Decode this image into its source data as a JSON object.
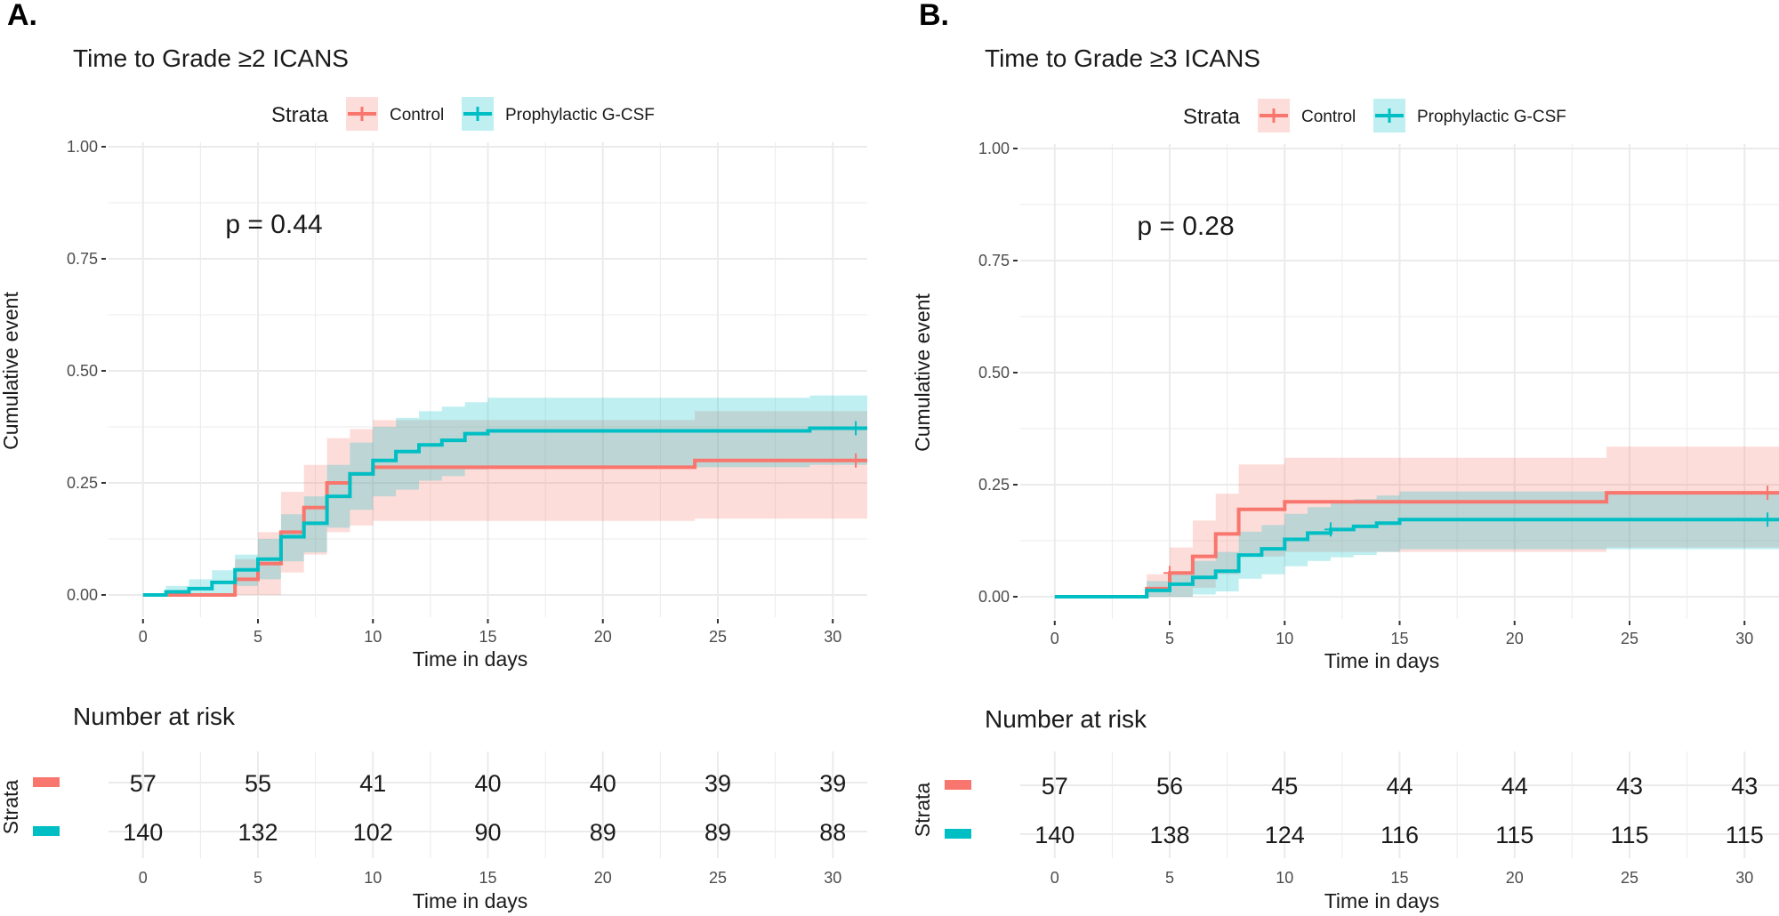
{
  "colors": {
    "control": "#F8766D",
    "gcsf": "#00BFC4",
    "grid": "#ebebeb",
    "text": "#1a1a1a"
  },
  "chart_data": [
    {
      "type": "line",
      "panel_label": "A.",
      "title": "Time to Grade ≥2 ICANS",
      "xlabel": "Time in days",
      "ylabel": "Cumulative event",
      "xlim": [
        0,
        31.5
      ],
      "ylim": [
        0,
        1
      ],
      "x_ticks": [
        0,
        5,
        10,
        15,
        20,
        25,
        30
      ],
      "x_tick_labels": [
        "0",
        "5",
        "10",
        "15",
        "20",
        "25",
        "30"
      ],
      "y_ticks": [
        0,
        0.25,
        0.5,
        0.75,
        1.0
      ],
      "y_tick_labels": [
        "0.00",
        "0.25",
        "0.50",
        "0.75",
        "1.00"
      ],
      "p_value_text": "p = 0.44",
      "p_value_pos": [
        5,
        0.8
      ],
      "legend": {
        "title": "Strata",
        "entries": [
          "Control",
          "Prophylactic G-CSF"
        ]
      },
      "series": [
        {
          "name": "Control",
          "color_key": "control",
          "steps": [
            [
              0,
              0
            ],
            [
              4,
              0
            ],
            [
              4,
              0.035
            ],
            [
              5,
              0.035
            ],
            [
              5,
              0.07
            ],
            [
              6,
              0.07
            ],
            [
              6,
              0.14
            ],
            [
              7,
              0.14
            ],
            [
              7,
              0.195
            ],
            [
              8,
              0.195
            ],
            [
              8,
              0.25
            ],
            [
              9,
              0.25
            ],
            [
              9,
              0.27
            ],
            [
              10,
              0.27
            ],
            [
              10,
              0.285
            ],
            [
              24,
              0.285
            ],
            [
              24,
              0.3
            ],
            [
              31.5,
              0.3
            ]
          ],
          "censor": [
            [
              31,
              0.3
            ]
          ],
          "ci": [
            [
              0,
              0,
              0
            ],
            [
              4,
              0,
              0
            ],
            [
              4,
              0,
              0.08
            ],
            [
              5,
              0,
              0.08
            ],
            [
              5,
              0,
              0.14
            ],
            [
              6,
              0,
              0.14
            ],
            [
              6,
              0.05,
              0.23
            ],
            [
              7,
              0.05,
              0.23
            ],
            [
              7,
              0.09,
              0.29
            ],
            [
              8,
              0.09,
              0.29
            ],
            [
              8,
              0.14,
              0.35
            ],
            [
              9,
              0.14,
              0.35
            ],
            [
              9,
              0.155,
              0.37
            ],
            [
              10,
              0.155,
              0.37
            ],
            [
              10,
              0.165,
              0.39
            ],
            [
              24,
              0.165,
              0.39
            ],
            [
              24,
              0.17,
              0.41
            ],
            [
              31.5,
              0.17,
              0.41
            ]
          ]
        },
        {
          "name": "Prophylactic G-CSF",
          "color_key": "gcsf",
          "steps": [
            [
              0,
              0
            ],
            [
              1,
              0
            ],
            [
              1,
              0.007
            ],
            [
              2,
              0.007
            ],
            [
              2,
              0.014
            ],
            [
              3,
              0.014
            ],
            [
              3,
              0.028
            ],
            [
              4,
              0.028
            ],
            [
              4,
              0.056
            ],
            [
              5,
              0.056
            ],
            [
              5,
              0.08
            ],
            [
              6,
              0.08
            ],
            [
              6,
              0.13
            ],
            [
              7,
              0.13
            ],
            [
              7,
              0.16
            ],
            [
              8,
              0.16
            ],
            [
              8,
              0.22
            ],
            [
              9,
              0.22
            ],
            [
              9,
              0.27
            ],
            [
              10,
              0.27
            ],
            [
              10,
              0.3
            ],
            [
              11,
              0.3
            ],
            [
              11,
              0.32
            ],
            [
              12,
              0.32
            ],
            [
              12,
              0.335
            ],
            [
              13,
              0.335
            ],
            [
              13,
              0.345
            ],
            [
              14,
              0.345
            ],
            [
              14,
              0.36
            ],
            [
              15,
              0.36
            ],
            [
              15,
              0.366
            ],
            [
              29,
              0.366
            ],
            [
              29,
              0.372
            ],
            [
              31.5,
              0.372
            ]
          ],
          "censor": [
            [
              31,
              0.372
            ]
          ],
          "ci": [
            [
              0,
              0,
              0
            ],
            [
              1,
              0,
              0
            ],
            [
              1,
              0,
              0.02
            ],
            [
              2,
              0,
              0.02
            ],
            [
              2,
              0,
              0.035
            ],
            [
              3,
              0,
              0.035
            ],
            [
              3,
              0.002,
              0.055
            ],
            [
              4,
              0.002,
              0.055
            ],
            [
              4,
              0.02,
              0.09
            ],
            [
              5,
              0.02,
              0.09
            ],
            [
              5,
              0.035,
              0.125
            ],
            [
              6,
              0.035,
              0.125
            ],
            [
              6,
              0.075,
              0.18
            ],
            [
              7,
              0.075,
              0.18
            ],
            [
              7,
              0.095,
              0.22
            ],
            [
              8,
              0.095,
              0.22
            ],
            [
              8,
              0.15,
              0.29
            ],
            [
              9,
              0.15,
              0.29
            ],
            [
              9,
              0.19,
              0.34
            ],
            [
              10,
              0.19,
              0.34
            ],
            [
              10,
              0.22,
              0.375
            ],
            [
              11,
              0.22,
              0.375
            ],
            [
              11,
              0.235,
              0.395
            ],
            [
              12,
              0.235,
              0.395
            ],
            [
              12,
              0.255,
              0.41
            ],
            [
              13,
              0.255,
              0.41
            ],
            [
              13,
              0.265,
              0.42
            ],
            [
              14,
              0.265,
              0.42
            ],
            [
              14,
              0.28,
              0.43
            ],
            [
              15,
              0.28,
              0.43
            ],
            [
              15,
              0.285,
              0.44
            ],
            [
              29,
              0.285,
              0.44
            ],
            [
              29,
              0.29,
              0.445
            ],
            [
              31.5,
              0.29,
              0.445
            ]
          ]
        }
      ],
      "risk_table": {
        "title": "Number at risk",
        "ylabel": "Strata",
        "xlabel": "Time in days",
        "times": [
          "0",
          "5",
          "10",
          "15",
          "20",
          "25",
          "30"
        ],
        "rows": [
          {
            "name": "Control",
            "color_key": "control",
            "values": [
              "57",
              "55",
              "41",
              "40",
              "40",
              "39",
              "39"
            ]
          },
          {
            "name": "Prophylactic G-CSF",
            "color_key": "gcsf",
            "values": [
              "140",
              "132",
              "102",
              "90",
              "89",
              "89",
              "88"
            ]
          }
        ]
      }
    },
    {
      "type": "line",
      "panel_label": "B.",
      "title": "Time to Grade ≥3 ICANS",
      "xlabel": "Time in days",
      "ylabel": "Cumulative event",
      "xlim": [
        0,
        31.5
      ],
      "ylim": [
        0,
        1
      ],
      "x_ticks": [
        0,
        5,
        10,
        15,
        20,
        25,
        30
      ],
      "x_tick_labels": [
        "0",
        "5",
        "10",
        "15",
        "20",
        "25",
        "30"
      ],
      "y_ticks": [
        0,
        0.25,
        0.5,
        0.75,
        1.0
      ],
      "y_tick_labels": [
        "0.00",
        "0.25",
        "0.50",
        "0.75",
        "1.00"
      ],
      "p_value_text": "p = 0.28",
      "p_value_pos": [
        5,
        0.8
      ],
      "legend": {
        "title": "Strata",
        "entries": [
          "Control",
          "Prophylactic G-CSF"
        ]
      },
      "series": [
        {
          "name": "Control",
          "color_key": "control",
          "steps": [
            [
              0,
              0
            ],
            [
              4,
              0
            ],
            [
              4,
              0.018
            ],
            [
              5,
              0.018
            ],
            [
              5,
              0.053
            ],
            [
              6,
              0.053
            ],
            [
              6,
              0.09
            ],
            [
              7,
              0.09
            ],
            [
              7,
              0.14
            ],
            [
              8,
              0.14
            ],
            [
              8,
              0.195
            ],
            [
              9,
              0.195
            ],
            [
              9,
              0.195
            ],
            [
              10,
              0.195
            ],
            [
              10,
              0.212
            ],
            [
              24,
              0.212
            ],
            [
              24,
              0.232
            ],
            [
              31.5,
              0.232
            ]
          ],
          "censor": [
            [
              5,
              0.053
            ],
            [
              31,
              0.232
            ]
          ],
          "ci": [
            [
              0,
              0,
              0
            ],
            [
              4,
              0,
              0
            ],
            [
              4,
              0,
              0.05
            ],
            [
              5,
              0,
              0.05
            ],
            [
              5,
              0,
              0.11
            ],
            [
              6,
              0,
              0.11
            ],
            [
              6,
              0.02,
              0.17
            ],
            [
              7,
              0.02,
              0.17
            ],
            [
              7,
              0.05,
              0.23
            ],
            [
              8,
              0.05,
              0.23
            ],
            [
              8,
              0.09,
              0.295
            ],
            [
              10,
              0.09,
              0.295
            ],
            [
              10,
              0.1,
              0.31
            ],
            [
              24,
              0.1,
              0.31
            ],
            [
              24,
              0.11,
              0.335
            ],
            [
              31.5,
              0.11,
              0.335
            ]
          ]
        },
        {
          "name": "Prophylactic G-CSF",
          "color_key": "gcsf",
          "steps": [
            [
              0,
              0
            ],
            [
              4,
              0
            ],
            [
              4,
              0.014
            ],
            [
              5,
              0.014
            ],
            [
              5,
              0.028
            ],
            [
              6,
              0.028
            ],
            [
              6,
              0.043
            ],
            [
              7,
              0.043
            ],
            [
              7,
              0.057
            ],
            [
              8,
              0.057
            ],
            [
              8,
              0.093
            ],
            [
              9,
              0.093
            ],
            [
              9,
              0.107
            ],
            [
              10,
              0.107
            ],
            [
              10,
              0.128
            ],
            [
              11,
              0.128
            ],
            [
              11,
              0.142
            ],
            [
              12,
              0.142
            ],
            [
              12,
              0.15
            ],
            [
              13,
              0.15
            ],
            [
              13,
              0.157
            ],
            [
              14,
              0.157
            ],
            [
              14,
              0.164
            ],
            [
              15,
              0.164
            ],
            [
              15,
              0.172
            ],
            [
              31.5,
              0.172
            ]
          ],
          "censor": [
            [
              12,
              0.15
            ],
            [
              31,
              0.172
            ]
          ],
          "ci": [
            [
              0,
              0,
              0
            ],
            [
              4,
              0,
              0
            ],
            [
              4,
              0,
              0.035
            ],
            [
              5,
              0,
              0.035
            ],
            [
              5,
              0,
              0.055
            ],
            [
              6,
              0,
              0.055
            ],
            [
              6,
              0.005,
              0.08
            ],
            [
              7,
              0.005,
              0.08
            ],
            [
              7,
              0.012,
              0.1
            ],
            [
              8,
              0.012,
              0.1
            ],
            [
              8,
              0.04,
              0.145
            ],
            [
              9,
              0.04,
              0.145
            ],
            [
              9,
              0.05,
              0.16
            ],
            [
              10,
              0.05,
              0.16
            ],
            [
              10,
              0.068,
              0.185
            ],
            [
              11,
              0.068,
              0.185
            ],
            [
              11,
              0.08,
              0.2
            ],
            [
              12,
              0.08,
              0.2
            ],
            [
              12,
              0.088,
              0.21
            ],
            [
              13,
              0.088,
              0.21
            ],
            [
              13,
              0.093,
              0.218
            ],
            [
              14,
              0.093,
              0.218
            ],
            [
              14,
              0.1,
              0.226
            ],
            [
              15,
              0.1,
              0.226
            ],
            [
              15,
              0.106,
              0.235
            ],
            [
              31.5,
              0.106,
              0.235
            ]
          ]
        }
      ],
      "risk_table": {
        "title": "Number at risk",
        "ylabel": "Strata",
        "xlabel": "Time in days",
        "times": [
          "0",
          "5",
          "10",
          "15",
          "20",
          "25",
          "30"
        ],
        "rows": [
          {
            "name": "Control",
            "color_key": "control",
            "values": [
              "57",
              "56",
              "45",
              "44",
              "44",
              "43",
              "43"
            ]
          },
          {
            "name": "Prophylactic G-CSF",
            "color_key": "gcsf",
            "values": [
              "140",
              "138",
              "124",
              "116",
              "115",
              "115",
              "115"
            ]
          }
        ]
      }
    }
  ]
}
